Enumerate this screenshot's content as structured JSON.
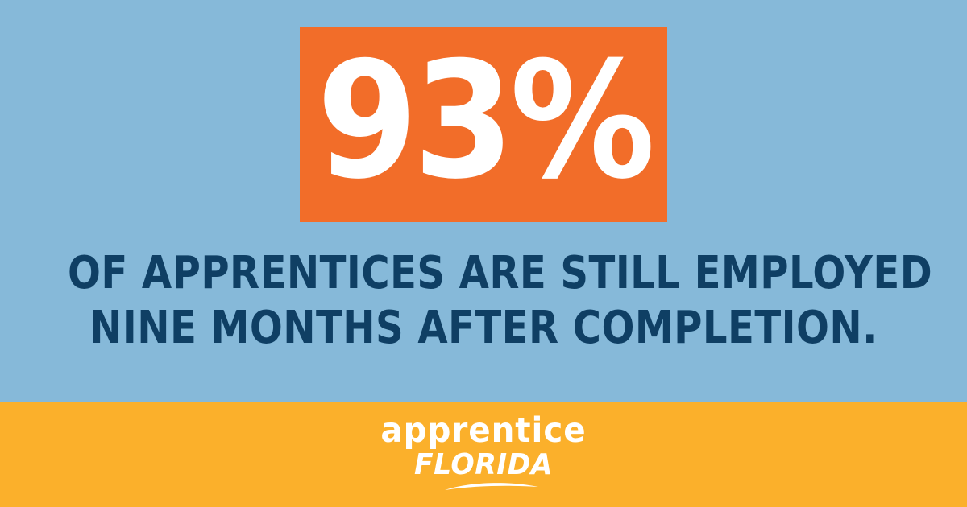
{
  "stat": {
    "value": "93%"
  },
  "message": {
    "line1": "OF APPRENTICES ARE STILL EMPLOYED",
    "line2": "NINE MONTHS AFTER COMPLETION."
  },
  "logo": {
    "line1": "apprentice",
    "line2": "FLORIDA"
  },
  "colors": {
    "background_blue": "#86b9d9",
    "stat_orange": "#f26d29",
    "text_navy": "#0f3f64",
    "footer_gold": "#fbb02b",
    "white": "#ffffff"
  }
}
